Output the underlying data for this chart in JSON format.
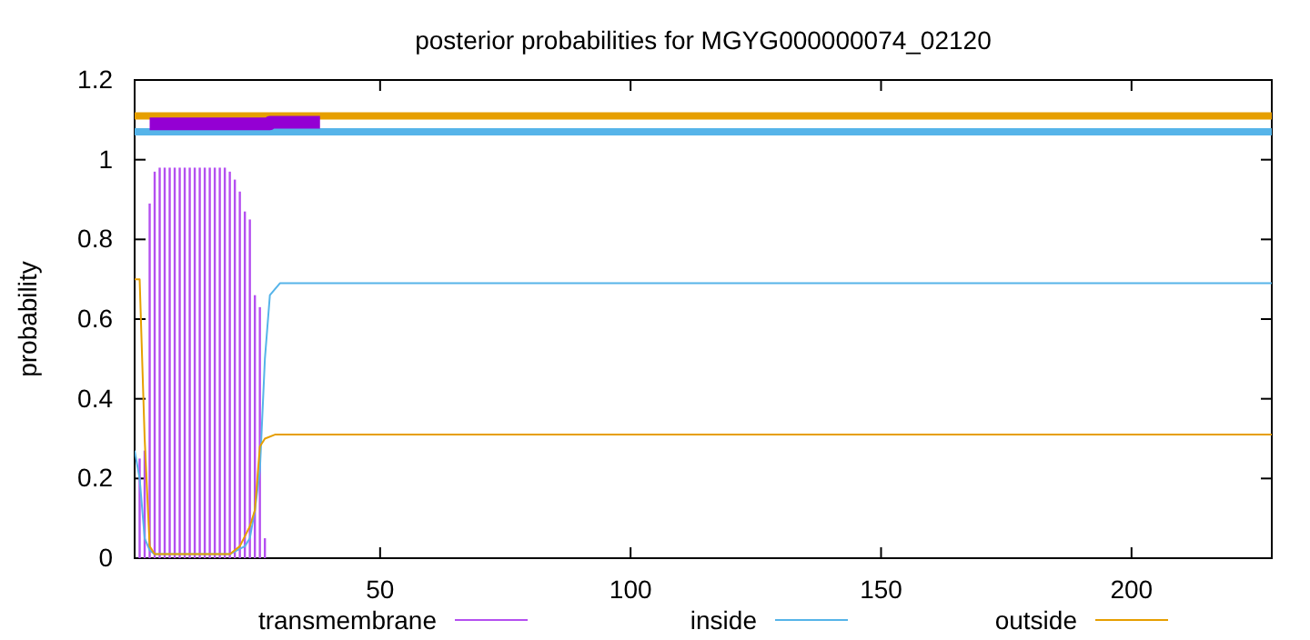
{
  "chart_data": {
    "type": "line",
    "title": "posterior probabilities for MGYG000000074_02120",
    "ylabel": "probability",
    "xlim": [
      1,
      228
    ],
    "xticks": [
      50,
      100,
      150,
      200
    ],
    "ylim": [
      0,
      1.2
    ],
    "yticks": [
      0,
      0.2,
      0.4,
      0.6,
      0.8,
      1,
      1.2
    ],
    "grid": false,
    "legend": "bottom",
    "ref_lines": [
      {
        "axis": "y",
        "value": 1.11,
        "color": "#e69f00"
      },
      {
        "axis": "y",
        "value": 1.07,
        "color": "#56b4e9"
      }
    ],
    "series": [
      {
        "name": "transmembrane",
        "type": "bar",
        "color": "#b44ff0",
        "x": [
          2,
          3,
          4,
          5,
          6,
          7,
          8,
          9,
          10,
          11,
          12,
          13,
          14,
          15,
          16,
          17,
          18,
          19,
          20,
          21,
          22,
          23,
          24,
          25,
          26,
          27
        ],
        "values": [
          0.25,
          0.27,
          0.89,
          0.97,
          0.98,
          0.98,
          0.98,
          0.98,
          0.98,
          0.98,
          0.98,
          0.98,
          0.98,
          0.98,
          0.98,
          0.98,
          0.98,
          0.98,
          0.97,
          0.95,
          0.92,
          0.87,
          0.85,
          0.66,
          0.63,
          0.05
        ]
      },
      {
        "name": "inside",
        "color": "#56b4e9",
        "x": [
          1,
          2,
          3,
          4,
          5,
          20,
          23,
          24,
          25,
          26,
          27,
          28,
          30,
          60,
          228
        ],
        "values": [
          0.27,
          0.2,
          0.05,
          0.02,
          0.01,
          0.01,
          0.03,
          0.05,
          0.12,
          0.22,
          0.5,
          0.66,
          0.69,
          0.69,
          0.69
        ]
      },
      {
        "name": "outside",
        "color": "#e69f00",
        "x": [
          1,
          2,
          3,
          4,
          5,
          20,
          22,
          24,
          25,
          26,
          27,
          29,
          228
        ],
        "values": [
          0.7,
          0.7,
          0.3,
          0.03,
          0.01,
          0.01,
          0.03,
          0.08,
          0.12,
          0.28,
          0.3,
          0.31,
          0.31
        ]
      },
      {
        "color": "#9400d3",
        "x": [
          4,
          28,
          28,
          38
        ],
        "values": [
          1.09,
          1.09,
          1.094,
          1.094
        ]
      }
    ]
  }
}
